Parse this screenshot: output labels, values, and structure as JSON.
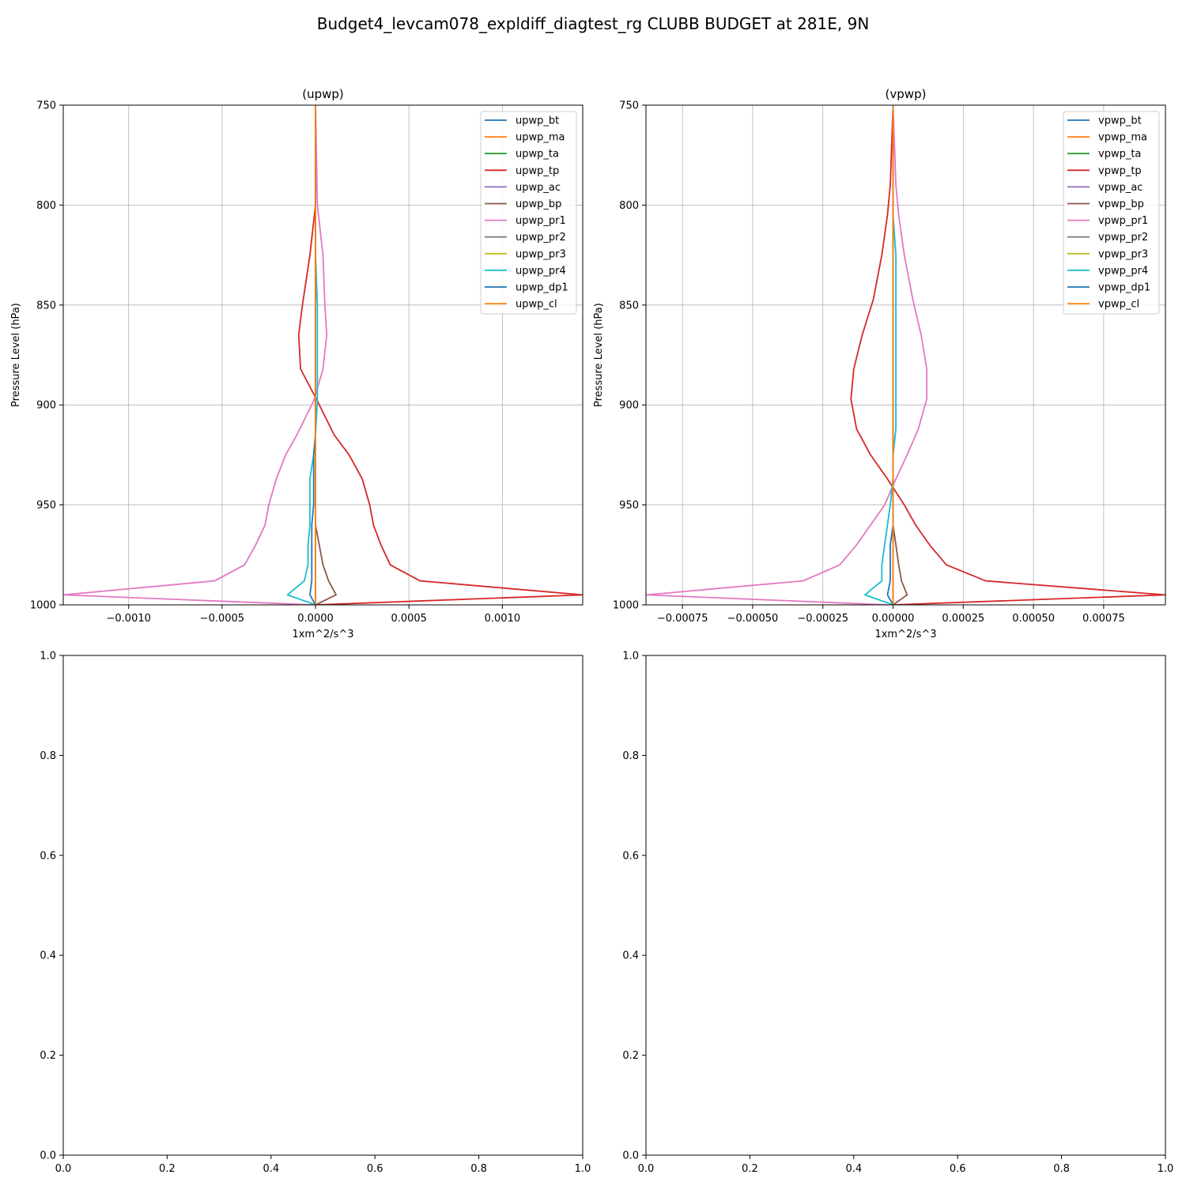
{
  "figure": {
    "suptitle": "Budget4_levcam078_expldiff_diagtest_rg CLUBB BUDGET at 281E, 9N"
  },
  "chart_data": [
    {
      "type": "line",
      "title": "(upwp)",
      "xlabel": "1xm^2/s^3",
      "ylabel": "Pressure Level (hPa)",
      "xlim": [
        -0.00135,
        0.00143
      ],
      "ylim": [
        1000,
        750
      ],
      "xticks": [
        -0.001,
        -0.0005,
        0.0,
        0.0005,
        0.001
      ],
      "xtick_labels": [
        "−0.0010",
        "−0.0005",
        "0.0000",
        "0.0005",
        "0.0010"
      ],
      "yticks": [
        750,
        800,
        850,
        900,
        950,
        1000
      ],
      "ytick_labels": [
        "750",
        "800",
        "850",
        "900",
        "950",
        "1000"
      ],
      "grid": true,
      "legend_position": "top-right",
      "levels": [
        750,
        800,
        825,
        850,
        865,
        882,
        898,
        915,
        925,
        937,
        950,
        960,
        970,
        980,
        988,
        995,
        1000
      ],
      "series": [
        {
          "name": "upwp_bt",
          "color": "#1f77b4",
          "values": [
            0,
            0,
            0,
            0,
            0,
            0,
            0,
            0,
            0,
            0,
            0,
            0,
            0,
            0,
            0,
            0,
            0
          ]
        },
        {
          "name": "upwp_ma",
          "color": "#ff7f0e",
          "values": [
            0,
            0,
            0,
            0,
            0,
            0,
            0,
            0,
            0,
            0,
            0,
            0,
            0,
            0,
            0,
            0,
            0
          ]
        },
        {
          "name": "upwp_ta",
          "color": "#2ca02c",
          "values": [
            0,
            0,
            0,
            0,
            0,
            0,
            0,
            0,
            0,
            0,
            0,
            0,
            0,
            0,
            0,
            0,
            0
          ]
        },
        {
          "name": "upwp_tp",
          "color": "#d62728",
          "values": [
            0,
            0.0,
            -3e-05,
            -7e-05,
            -9e-05,
            -8e-05,
            1e-05,
            0.0001,
            0.00018,
            0.00025,
            0.00029,
            0.00031,
            0.00035,
            0.0004,
            0.00056,
            0.00143,
            0
          ]
        },
        {
          "name": "upwp_ac",
          "color": "#9467bd",
          "values": [
            0,
            0,
            0,
            0,
            0,
            0,
            0,
            0,
            0,
            0,
            0,
            0,
            0,
            0,
            0,
            0,
            0
          ]
        },
        {
          "name": "upwp_bp",
          "color": "#8c564b",
          "values": [
            0,
            0,
            0,
            0,
            0,
            0,
            0,
            0,
            0,
            0,
            0,
            0,
            2e-05,
            4e-05,
            7e-05,
            0.00011,
            0
          ]
        },
        {
          "name": "upwp_pr1",
          "color": "#e377c2",
          "values": [
            0,
            1e-05,
            4e-05,
            5e-05,
            6e-05,
            4e-05,
            -1e-05,
            -0.0001,
            -0.00016,
            -0.00021,
            -0.00025,
            -0.00027,
            -0.00032,
            -0.00038,
            -0.00054,
            -0.00135,
            -1e-05
          ]
        },
        {
          "name": "upwp_pr2",
          "color": "#7f7f7f",
          "values": [
            0,
            0,
            0,
            0,
            0,
            0,
            0,
            0,
            0,
            0,
            0,
            0,
            0,
            0,
            0,
            0,
            0
          ]
        },
        {
          "name": "upwp_pr3",
          "color": "#bcbd22",
          "values": [
            0,
            0,
            0,
            0,
            0,
            0,
            0,
            0,
            0,
            0,
            0,
            0,
            0,
            0,
            0,
            0,
            0
          ]
        },
        {
          "name": "upwp_pr4",
          "color": "#17becf",
          "values": [
            0,
            0,
            0,
            1e-05,
            1e-05,
            1e-05,
            1e-05,
            0,
            -1e-05,
            -3e-05,
            -3e-05,
            -3e-05,
            -4e-05,
            -4e-05,
            -6e-05,
            -0.00015,
            0
          ]
        },
        {
          "name": "upwp_dp1",
          "color": "#1f77b4",
          "values": [
            0,
            0,
            0,
            0,
            0,
            0,
            0,
            0,
            -1e-05,
            -1e-05,
            -1e-05,
            -2e-05,
            -2e-05,
            -2e-05,
            -2e-05,
            -3e-05,
            0
          ]
        },
        {
          "name": "upwp_cl",
          "color": "#ff7f0e",
          "values": [
            0,
            0,
            0,
            0,
            0,
            0,
            0,
            0,
            0,
            0,
            0,
            0,
            0,
            0,
            0,
            0,
            0
          ]
        }
      ]
    },
    {
      "type": "line",
      "title": "(vpwp)",
      "xlabel": "1xm^2/s^3",
      "ylabel": "Pressure Level (hPa)",
      "xlim": [
        -0.00088,
        0.00097
      ],
      "ylim": [
        1000,
        750
      ],
      "xticks": [
        -0.00075,
        -0.0005,
        -0.00025,
        0.0,
        0.00025,
        0.0005,
        0.00075
      ],
      "xtick_labels": [
        "−0.00075",
        "−0.00050",
        "−0.00025",
        "0.00000",
        "0.00025",
        "0.00050",
        "0.00075"
      ],
      "yticks": [
        750,
        800,
        850,
        900,
        950,
        1000
      ],
      "ytick_labels": [
        "750",
        "800",
        "850",
        "900",
        "950",
        "1000"
      ],
      "grid": true,
      "legend_position": "top-right",
      "levels": [
        750,
        790,
        805,
        825,
        847,
        865,
        882,
        897,
        912,
        925,
        937,
        950,
        960,
        970,
        980,
        988,
        995,
        1000
      ],
      "series": [
        {
          "name": "vpwp_bt",
          "color": "#1f77b4",
          "values": [
            0,
            0,
            0,
            0,
            0,
            0,
            0,
            0,
            0,
            0,
            0,
            0,
            0,
            0,
            0,
            0,
            0,
            0
          ]
        },
        {
          "name": "vpwp_ma",
          "color": "#ff7f0e",
          "values": [
            0,
            0,
            0,
            0,
            0,
            0,
            0,
            0,
            0,
            0,
            0,
            0,
            0,
            0,
            0,
            0,
            0,
            0
          ]
        },
        {
          "name": "vpwp_ta",
          "color": "#2ca02c",
          "values": [
            0,
            0,
            0,
            0,
            0,
            0,
            0,
            0,
            0,
            0,
            0,
            0,
            0,
            0,
            0,
            0,
            0,
            0
          ]
        },
        {
          "name": "vpwp_tp",
          "color": "#d62728",
          "values": [
            0,
            -1e-05,
            -2e-05,
            -4e-05,
            -7e-05,
            -0.00011,
            -0.00014,
            -0.00015,
            -0.00013,
            -8e-05,
            -2e-05,
            4e-05,
            8e-05,
            0.00013,
            0.00019,
            0.00033,
            0.00097,
            0
          ]
        },
        {
          "name": "vpwp_ac",
          "color": "#9467bd",
          "values": [
            0,
            0,
            0,
            0,
            0,
            0,
            0,
            0,
            0,
            0,
            0,
            0,
            0,
            0,
            0,
            0,
            0,
            0
          ]
        },
        {
          "name": "vpwp_bp",
          "color": "#8c564b",
          "values": [
            0,
            0,
            0,
            0,
            0,
            0,
            0,
            0,
            0,
            0,
            0,
            0,
            0,
            1e-05,
            2e-05,
            3e-05,
            5e-05,
            0
          ]
        },
        {
          "name": "vpwp_pr1",
          "color": "#e377c2",
          "values": [
            0,
            1e-05,
            2e-05,
            4e-05,
            7e-05,
            0.0001,
            0.00012,
            0.00012,
            9e-05,
            5e-05,
            1e-05,
            -3e-05,
            -8e-05,
            -0.00013,
            -0.00019,
            -0.00032,
            -0.00088,
            -2e-05
          ]
        },
        {
          "name": "vpwp_pr2",
          "color": "#7f7f7f",
          "values": [
            0,
            0,
            0,
            0,
            0,
            0,
            0,
            0,
            0,
            0,
            0,
            0,
            0,
            0,
            0,
            0,
            0,
            0
          ]
        },
        {
          "name": "vpwp_pr3",
          "color": "#bcbd22",
          "values": [
            0,
            0,
            0,
            0,
            0,
            0,
            0,
            0,
            0,
            0,
            0,
            0,
            0,
            0,
            0,
            0,
            0,
            0
          ]
        },
        {
          "name": "vpwp_pr4",
          "color": "#17becf",
          "values": [
            0,
            0,
            0,
            1e-05,
            1e-05,
            1e-05,
            1e-05,
            1e-05,
            1e-05,
            0,
            0,
            -1e-05,
            -2e-05,
            -3e-05,
            -4e-05,
            -4e-05,
            -0.0001,
            0
          ]
        },
        {
          "name": "vpwp_dp1",
          "color": "#1f77b4",
          "values": [
            0,
            0,
            0,
            0,
            0,
            0,
            0,
            0,
            0,
            0,
            0,
            0,
            0,
            -1e-05,
            -1e-05,
            -1e-05,
            -2e-05,
            0
          ]
        },
        {
          "name": "vpwp_cl",
          "color": "#ff7f0e",
          "values": [
            0,
            0,
            0,
            0,
            0,
            0,
            0,
            0,
            0,
            0,
            0,
            0,
            0,
            0,
            0,
            0,
            0,
            0
          ]
        }
      ]
    },
    {
      "type": "line",
      "title": "",
      "xlim": [
        0,
        1
      ],
      "ylim": [
        0,
        1
      ],
      "xticks": [
        0.0,
        0.2,
        0.4,
        0.6,
        0.8,
        1.0
      ],
      "xtick_labels": [
        "0.0",
        "0.2",
        "0.4",
        "0.6",
        "0.8",
        "1.0"
      ],
      "yticks": [
        0.0,
        0.2,
        0.4,
        0.6,
        0.8,
        1.0
      ],
      "ytick_labels": [
        "0.0",
        "0.2",
        "0.4",
        "0.6",
        "0.8",
        "1.0"
      ],
      "grid": false,
      "series": []
    },
    {
      "type": "line",
      "title": "",
      "xlim": [
        0,
        1
      ],
      "ylim": [
        0,
        1
      ],
      "xticks": [
        0.0,
        0.2,
        0.4,
        0.6,
        0.8,
        1.0
      ],
      "xtick_labels": [
        "0.0",
        "0.2",
        "0.4",
        "0.6",
        "0.8",
        "1.0"
      ],
      "yticks": [
        0.0,
        0.2,
        0.4,
        0.6,
        0.8,
        1.0
      ],
      "ytick_labels": [
        "0.0",
        "0.2",
        "0.4",
        "0.6",
        "0.8",
        "1.0"
      ],
      "grid": false,
      "series": []
    }
  ]
}
